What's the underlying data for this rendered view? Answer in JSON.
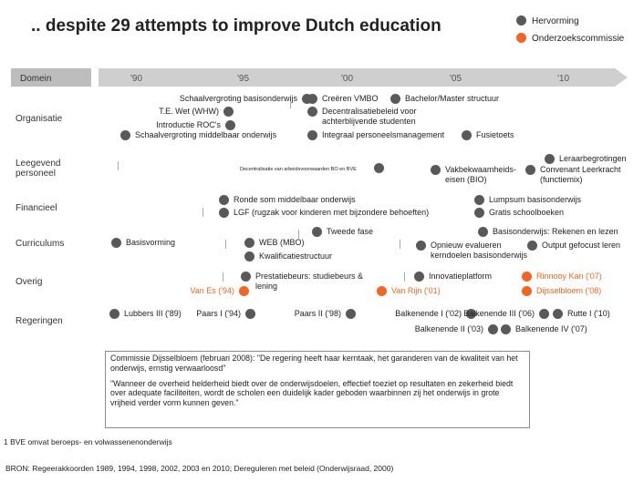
{
  "title": ".. despite 29 attempts to improve Dutch education",
  "legend": [
    {
      "label": "Hervorming",
      "color": "#595959"
    },
    {
      "label": "Onderzoekscommissie",
      "color": "#f26522"
    }
  ],
  "domain_header": "Domein",
  "years": [
    "'90",
    "'95",
    "'00",
    "'05",
    "'10"
  ],
  "lanes": {
    "organisatie": "Organisatie",
    "personeel": "Leegevend personeel",
    "financieel": "Financieel",
    "curriculums": "Curriculums",
    "overig": "Overig",
    "regeringen": "Regeringen"
  },
  "events": {
    "schaalvergroting_bo": "Schaalvergroting basisonderwijs",
    "wet_whw": "T.E. Wet (WHW)",
    "roc": "Introductie ROC's",
    "schaalvergroting_mo": "Schaalvergroting middelbaar onderwijs",
    "vmbo": "Creëren VMBO",
    "bamas": "Bachelor/Master structuur",
    "decentralisatie": "Decentralisatiebeleid voor achterblijvende studenten",
    "personeelsmanagement": "Integraal personeelsmanagement",
    "fusietoets": "Fusietoets",
    "lerarbegroting": "Leraarbegrotingen",
    "decentralisatie_arbeid": "Decentralisatie van arbeidsvoorwaarden BO en BVE",
    "vakbekwaamheid": "Vakbekwaamheids-eisen (BIO)",
    "convenant": "Convenant Leerkracht (functiemix)",
    "ronde_som": "Ronde som middelbaar onderwijs",
    "lgf": "LGF (rugzak voor kinderen met bijzondere behoeften)",
    "lumpsum": "Lumpsum basisonderwijs",
    "gratis": "Gratis schoolboeken",
    "tweede_fase": "Tweede fase",
    "basisonderwijs_rekenen": "Basisonderwijs: Rekenen en lezen",
    "basisvorming": "Basisvorming",
    "web": "WEB (MBO)",
    "kwalificatie": "Kwalificatiestructuur",
    "opnieuw": "Opnieuw evalueren kerndoelen basisonderwijs",
    "output": "Output gefocust leren",
    "prestatiebeurs": "Prestatiebeurs: studiebeurs & lening",
    "innovatieplatform": "Innovatieplatform",
    "van_es": "Van Es ('94)",
    "van_rijn": "Van Rijn ('01)",
    "rinnooy": "Rinnooy Kan ('07)",
    "dijsselbloem": "Dijsselbloem ('08)",
    "lubbers": "Lubbers III ('89)",
    "paars1": "Paars I ('94)",
    "paars2": "Paars II ('98)",
    "balkenende1": "Balkenende I ('02)",
    "balkenende2": "Balkenende II ('03)",
    "balkenende3": "Balkenende III ('06)",
    "balkenende4": "Balkenende IV ('07)",
    "rutte": "Rutte I ('10)"
  },
  "quote": {
    "p1": "Commissie Dijsselbloem (februari 2008): \"De regering heeft haar kerntaak, het garanderen van de kwaliteit van het onderwijs, ernstig verwaarloosd\"",
    "p2": "\"Wanneer de overheid helderheid biedt over de onderwijsdoelen, effectief toeziet op resultaten en zekerheid biedt over adequate faciliteiten, wordt de scholen een duidelijk kader geboden waarbinnen zij het onderwijs in grote vrijheid verder vorm kunnen geven.\""
  },
  "footnote": "1 BVE omvat beroeps- en volwassenenonderwijs",
  "source": "BRON: Regeerakkoorden 1989, 1994, 1998, 2002, 2003 en 2010; Dereguleren met beleid (Onderwijsraad, 2000)"
}
